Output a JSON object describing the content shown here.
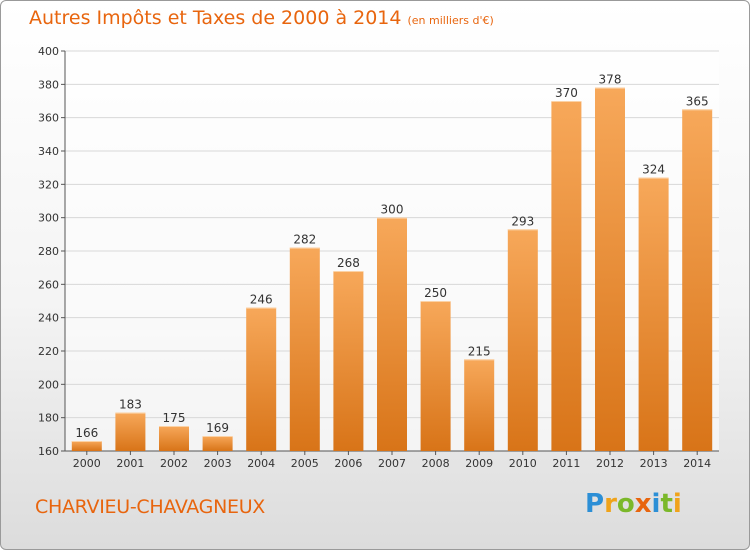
{
  "title": "Autres Impôts et Taxes de 2000 à 2014",
  "unit": "(en milliers d'€)",
  "commune": "CHARVIEU-CHAVAGNEUX",
  "logo": {
    "letters": [
      {
        "char": "P",
        "color": "#2c8fd6"
      },
      {
        "char": "r",
        "color": "#f0a31a"
      },
      {
        "char": "o",
        "color": "#7bb82a"
      },
      {
        "char": "x",
        "color": "#e8650e"
      },
      {
        "char": "i",
        "color": "#2c8fd6"
      },
      {
        "char": "t",
        "color": "#7bb82a"
      },
      {
        "char": "i",
        "color": "#f0a31a"
      }
    ]
  },
  "colors": {
    "bar_light": "#f7a85a",
    "bar_dark": "#d87418",
    "accent": "#e8650e",
    "grid": "#d8d8d8"
  },
  "chart_data": {
    "type": "bar",
    "categories": [
      "2000",
      "2001",
      "2002",
      "2003",
      "2004",
      "2005",
      "2006",
      "2007",
      "2008",
      "2009",
      "2010",
      "2011",
      "2012",
      "2013",
      "2014"
    ],
    "values": [
      166,
      183,
      175,
      169,
      246,
      282,
      268,
      300,
      250,
      215,
      293,
      370,
      378,
      324,
      365
    ],
    "ylim": [
      160,
      400
    ],
    "yticks": [
      160,
      180,
      200,
      220,
      240,
      260,
      280,
      300,
      320,
      340,
      360,
      380,
      400
    ],
    "grid": true,
    "data_labels": true
  }
}
